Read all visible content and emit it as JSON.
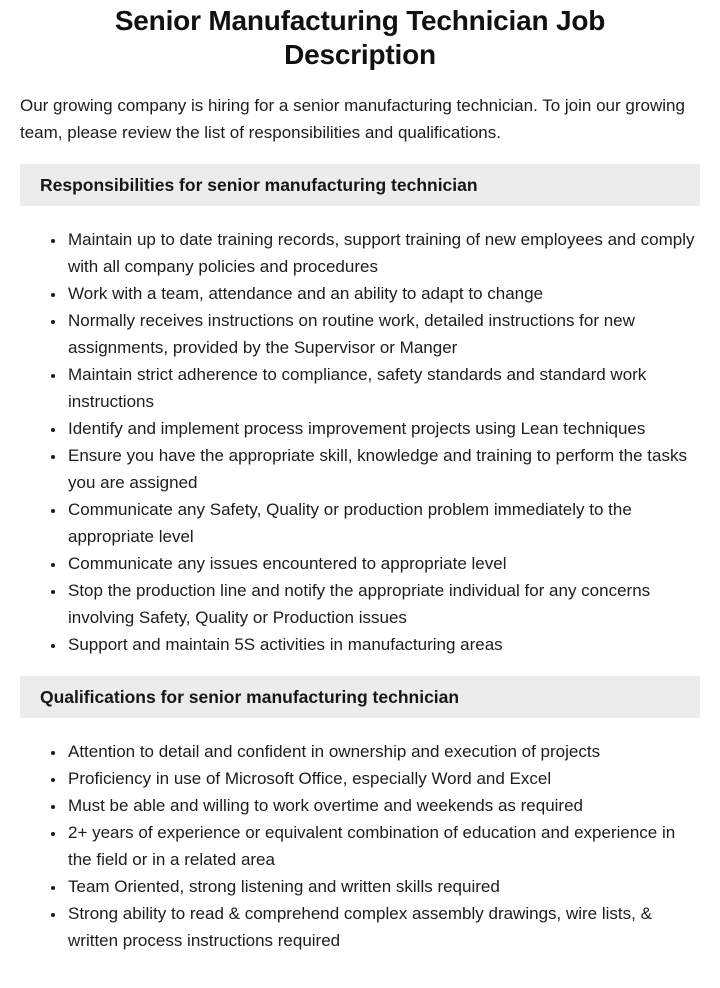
{
  "page": {
    "title": "Senior Manufacturing Technician Job Description",
    "intro": "Our growing company is hiring for a senior manufacturing technician. To join our growing team, please review the list of responsibilities and qualifications."
  },
  "sections": [
    {
      "heading": "Responsibilities for senior manufacturing technician",
      "items": [
        "Maintain up to date training records, support training of new employees and comply with all company policies and procedures",
        "Work with a team, attendance and an ability to adapt to change",
        "Normally receives instructions on routine work, detailed instructions for new assignments, provided by the Supervisor or Manger",
        "Maintain strict adherence to compliance, safety standards and standard work instructions",
        "Identify and implement process improvement projects using Lean techniques",
        "Ensure you have the appropriate skill, knowledge and training to perform the tasks you are assigned",
        "Communicate any Safety, Quality or production problem immediately to the appropriate level",
        "Communicate any issues encountered to appropriate level",
        "Stop the production line and notify the appropriate individual for any concerns involving Safety, Quality or Production issues",
        "Support and maintain 5S activities in manufacturing areas"
      ]
    },
    {
      "heading": "Qualifications for senior manufacturing technician",
      "items": [
        "Attention to detail and confident in ownership and execution of projects",
        "Proficiency in use of Microsoft Office, especially Word and Excel",
        "Must be able and willing to work overtime and weekends as required",
        "2+ years of experience or equivalent combination of education and experience in the field or in a related area",
        "Team Oriented, strong listening and written skills required",
        "Strong ability to read & comprehend complex assembly drawings, wire lists, & written process instructions required"
      ]
    }
  ],
  "colors": {
    "section_heading_bg": "#ececec",
    "text": "#1c1c1c",
    "background": "#ffffff"
  }
}
